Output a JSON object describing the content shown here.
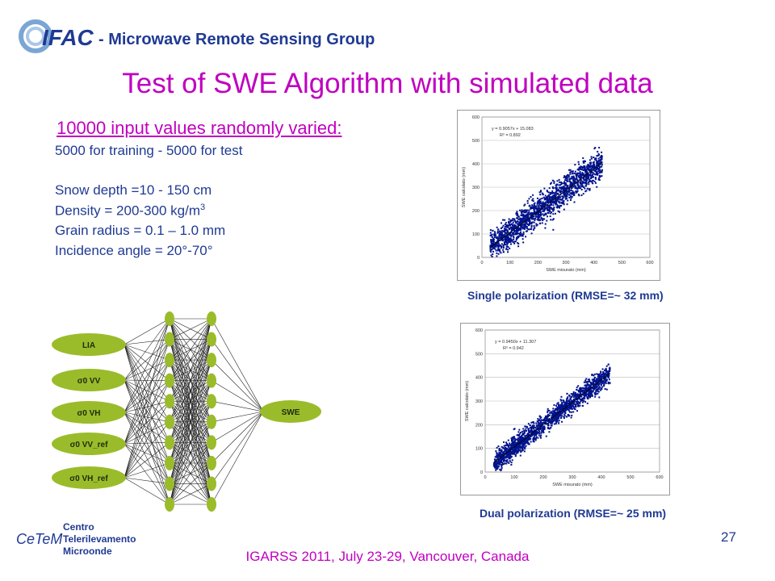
{
  "header": {
    "logo_text": "IFAC",
    "group_name": "-  Microwave Remote Sensing Group"
  },
  "title": "Test of SWE Algorithm with simulated data",
  "intro": "10000 input values randomly varied:",
  "training_line": "5000 for training  - 5000 for test",
  "params": {
    "snow_depth": "Snow depth =10 - 150 cm",
    "density_prefix": "Density =  200-300 kg/m",
    "density_sup": "3",
    "grain": "Grain radius = 0.1 – 1.0 mm",
    "incidence": "Incidence angle = 20°-70°"
  },
  "network": {
    "inputs": [
      "LIA",
      "σ0 VV",
      "σ0 VH",
      "σ0 VV_ref",
      "σ0 VH_ref"
    ],
    "output": "SWE",
    "hidden_layer_sizes": [
      10,
      10
    ],
    "node_color": "#9abc2a"
  },
  "charts": [
    {
      "caption": "Single polarization (RMSE=~ 32 mm)",
      "equation": "y = 0.9057x + 15.083",
      "r2": "R² = 0.892",
      "xlabel": "SWE misurato (mm)",
      "ylabel": "SWE calcolato (mm)",
      "xticks": [
        "0",
        "100",
        "200",
        "300",
        "400",
        "500",
        "600"
      ],
      "yticks": [
        "0",
        "100",
        "200",
        "300",
        "400",
        "500",
        "600"
      ],
      "xlim": [
        0,
        600
      ],
      "ylim": [
        0,
        600
      ],
      "slope": 0.9057,
      "intercept": 15.083,
      "n_points": 1600,
      "spread": 32
    },
    {
      "caption": "Dual  polarization (RMSE=~ 25 mm)",
      "equation": "y = 0.9450x + 11.307",
      "r2": "R² = 0.942",
      "xlabel": "SWE misurato (mm)",
      "ylabel": "SWE calcolato (mm)",
      "xticks": [
        "0",
        "100",
        "200",
        "300",
        "400",
        "500",
        "600"
      ],
      "yticks": [
        "0",
        "100",
        "200",
        "300",
        "400",
        "500",
        "600"
      ],
      "xlim": [
        0,
        600
      ],
      "ylim": [
        0,
        600
      ],
      "slope": 0.945,
      "intercept": 11.307,
      "n_points": 1600,
      "spread": 22
    }
  ],
  "page_number": "27",
  "footer": "IGARSS 2011, July 23-29, Vancouver, Canada",
  "cetem": {
    "mark": "CeTeM",
    "line1": "Centro",
    "line2": "Telerilevamento",
    "line3": "Microonde"
  },
  "colors": {
    "title": "#c000c0",
    "text": "#1f3a93",
    "points": "#00128c",
    "node": "#9abc2a"
  }
}
